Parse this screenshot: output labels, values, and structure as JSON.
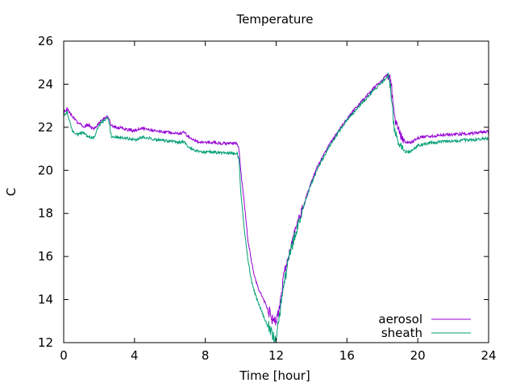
{
  "chart_data": {
    "type": "line",
    "title": "Temperature",
    "xlabel": "Time [hour]",
    "ylabel": "C",
    "xlim": [
      0,
      24
    ],
    "ylim": [
      12,
      26
    ],
    "x_ticks": [
      0,
      4,
      8,
      12,
      16,
      20,
      24
    ],
    "y_ticks": [
      12,
      14,
      16,
      18,
      20,
      22,
      24,
      26
    ],
    "grid": false,
    "legend_position": "bottom-right",
    "series": [
      {
        "name": "aerosol",
        "color": "#9400d3",
        "points": [
          [
            0.0,
            22.7
          ],
          [
            0.2,
            22.85
          ],
          [
            0.5,
            22.5
          ],
          [
            0.8,
            22.2
          ],
          [
            1.1,
            22.05
          ],
          [
            1.4,
            22.1
          ],
          [
            1.7,
            21.9
          ],
          [
            2.0,
            22.2
          ],
          [
            2.3,
            22.4
          ],
          [
            2.5,
            22.5
          ],
          [
            2.7,
            22.05
          ],
          [
            3.0,
            22.0
          ],
          [
            3.5,
            21.9
          ],
          [
            4.0,
            21.85
          ],
          [
            4.5,
            21.95
          ],
          [
            5.0,
            21.85
          ],
          [
            5.5,
            21.8
          ],
          [
            6.0,
            21.75
          ],
          [
            6.5,
            21.7
          ],
          [
            6.8,
            21.75
          ],
          [
            7.0,
            21.6
          ],
          [
            7.5,
            21.35
          ],
          [
            8.0,
            21.3
          ],
          [
            8.5,
            21.3
          ],
          [
            9.0,
            21.25
          ],
          [
            9.6,
            21.25
          ],
          [
            9.8,
            21.25
          ],
          [
            9.9,
            21.0
          ],
          [
            10.0,
            20.0
          ],
          [
            10.2,
            18.5
          ],
          [
            10.4,
            16.8
          ],
          [
            10.6,
            15.8
          ],
          [
            10.8,
            15.0
          ],
          [
            11.0,
            14.5
          ],
          [
            11.2,
            14.15
          ],
          [
            11.4,
            13.8
          ],
          [
            11.6,
            13.45
          ],
          [
            11.75,
            13.15
          ],
          [
            11.85,
            13.0
          ],
          [
            12.0,
            12.95
          ],
          [
            12.1,
            13.25
          ],
          [
            12.2,
            13.8
          ],
          [
            12.35,
            14.6
          ],
          [
            12.5,
            15.3
          ],
          [
            12.7,
            15.9
          ],
          [
            12.9,
            16.6
          ],
          [
            13.1,
            17.2
          ],
          [
            13.3,
            17.7
          ],
          [
            13.6,
            18.5
          ],
          [
            13.9,
            19.3
          ],
          [
            14.3,
            20.1
          ],
          [
            14.6,
            20.6
          ],
          [
            15.0,
            21.2
          ],
          [
            15.5,
            21.8
          ],
          [
            16.0,
            22.4
          ],
          [
            16.5,
            22.9
          ],
          [
            17.0,
            23.35
          ],
          [
            17.5,
            23.8
          ],
          [
            18.0,
            24.2
          ],
          [
            18.3,
            24.45
          ],
          [
            18.4,
            24.35
          ],
          [
            18.5,
            24.1
          ],
          [
            18.6,
            23.0
          ],
          [
            18.7,
            22.4
          ],
          [
            18.85,
            22.1
          ],
          [
            19.0,
            21.7
          ],
          [
            19.3,
            21.3
          ],
          [
            19.6,
            21.3
          ],
          [
            20.0,
            21.5
          ],
          [
            20.5,
            21.6
          ],
          [
            21.0,
            21.6
          ],
          [
            21.5,
            21.65
          ],
          [
            22.0,
            21.65
          ],
          [
            22.5,
            21.7
          ],
          [
            23.0,
            21.7
          ],
          [
            23.5,
            21.75
          ],
          [
            24.0,
            21.8
          ]
        ]
      },
      {
        "name": "sheath",
        "color": "#009e73",
        "points": [
          [
            0.0,
            22.6
          ],
          [
            0.2,
            22.7
          ],
          [
            0.5,
            21.8
          ],
          [
            0.8,
            21.65
          ],
          [
            1.1,
            21.8
          ],
          [
            1.4,
            21.55
          ],
          [
            1.7,
            21.5
          ],
          [
            2.0,
            22.1
          ],
          [
            2.3,
            22.35
          ],
          [
            2.5,
            22.45
          ],
          [
            2.7,
            21.55
          ],
          [
            3.0,
            21.55
          ],
          [
            3.5,
            21.5
          ],
          [
            4.0,
            21.4
          ],
          [
            4.5,
            21.55
          ],
          [
            5.0,
            21.45
          ],
          [
            5.5,
            21.4
          ],
          [
            6.0,
            21.35
          ],
          [
            6.5,
            21.3
          ],
          [
            6.8,
            21.35
          ],
          [
            7.0,
            21.1
          ],
          [
            7.5,
            20.9
          ],
          [
            8.0,
            20.85
          ],
          [
            8.5,
            20.85
          ],
          [
            9.0,
            20.8
          ],
          [
            9.6,
            20.8
          ],
          [
            9.8,
            20.8
          ],
          [
            9.9,
            20.5
          ],
          [
            10.0,
            19.0
          ],
          [
            10.2,
            17.3
          ],
          [
            10.4,
            15.9
          ],
          [
            10.6,
            14.9
          ],
          [
            10.8,
            14.3
          ],
          [
            11.0,
            13.8
          ],
          [
            11.2,
            13.4
          ],
          [
            11.4,
            13.0
          ],
          [
            11.6,
            12.7
          ],
          [
            11.75,
            12.45
          ],
          [
            11.85,
            12.25
          ],
          [
            11.95,
            12.1
          ],
          [
            12.05,
            12.5
          ],
          [
            12.2,
            13.3
          ],
          [
            12.35,
            14.3
          ],
          [
            12.5,
            15.0
          ],
          [
            12.7,
            15.8
          ],
          [
            12.9,
            16.5
          ],
          [
            13.1,
            17.1
          ],
          [
            13.3,
            17.6
          ],
          [
            13.6,
            18.45
          ],
          [
            13.9,
            19.2
          ],
          [
            14.3,
            20.0
          ],
          [
            14.6,
            20.5
          ],
          [
            15.0,
            21.1
          ],
          [
            15.5,
            21.75
          ],
          [
            16.0,
            22.35
          ],
          [
            16.5,
            22.8
          ],
          [
            17.0,
            23.25
          ],
          [
            17.5,
            23.7
          ],
          [
            18.0,
            24.1
          ],
          [
            18.3,
            24.35
          ],
          [
            18.4,
            24.2
          ],
          [
            18.5,
            23.5
          ],
          [
            18.6,
            22.5
          ],
          [
            18.7,
            21.8
          ],
          [
            18.85,
            21.4
          ],
          [
            19.0,
            21.1
          ],
          [
            19.3,
            20.85
          ],
          [
            19.6,
            20.85
          ],
          [
            20.0,
            21.15
          ],
          [
            20.5,
            21.25
          ],
          [
            21.0,
            21.3
          ],
          [
            21.5,
            21.35
          ],
          [
            22.0,
            21.35
          ],
          [
            22.5,
            21.4
          ],
          [
            23.0,
            21.4
          ],
          [
            23.5,
            21.45
          ],
          [
            24.0,
            21.5
          ]
        ]
      }
    ]
  }
}
